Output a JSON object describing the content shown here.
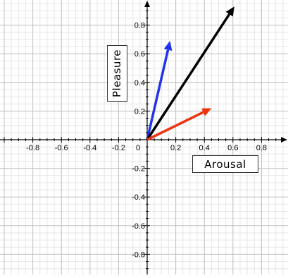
{
  "chart_data": {
    "type": "vector",
    "xlabel": "Arousal",
    "ylabel": "Pleasure",
    "xlim": [
      -1.0,
      1.0
    ],
    "ylim": [
      -1.0,
      1.0
    ],
    "grid": true,
    "x_ticks": [
      {
        "value": -0.8,
        "label": "-0.8"
      },
      {
        "value": -0.6,
        "label": "-0.6"
      },
      {
        "value": -0.4,
        "label": "-0.4"
      },
      {
        "value": -0.2,
        "label": "-0.2"
      },
      {
        "value": 0,
        "label": "0"
      },
      {
        "value": 0.2,
        "label": "0.2"
      },
      {
        "value": 0.4,
        "label": "0.4"
      },
      {
        "value": 0.6,
        "label": "0.6"
      },
      {
        "value": 0.8,
        "label": "0.8"
      }
    ],
    "y_ticks": [
      {
        "value": 0.8,
        "label": "0.8"
      },
      {
        "value": 0.6,
        "label": "0.6"
      },
      {
        "value": 0.4,
        "label": "0.4"
      },
      {
        "value": 0.2,
        "label": "0.2"
      },
      {
        "value": -0.2,
        "label": "-0.2"
      },
      {
        "value": -0.4,
        "label": "-0.4"
      },
      {
        "value": -0.6,
        "label": "-0.6"
      },
      {
        "value": -0.8,
        "label": "-0.8"
      }
    ],
    "vectors": [
      {
        "color": "#2233ee",
        "x0": 0,
        "y0": 0,
        "x1": 0.16,
        "y1": 0.69
      },
      {
        "color": "#000000",
        "x0": 0,
        "y0": 0,
        "x1": 0.61,
        "y1": 0.93
      },
      {
        "color": "#ee3311",
        "x0": 0,
        "y0": 0,
        "x1": 0.45,
        "y1": 0.22
      }
    ]
  }
}
